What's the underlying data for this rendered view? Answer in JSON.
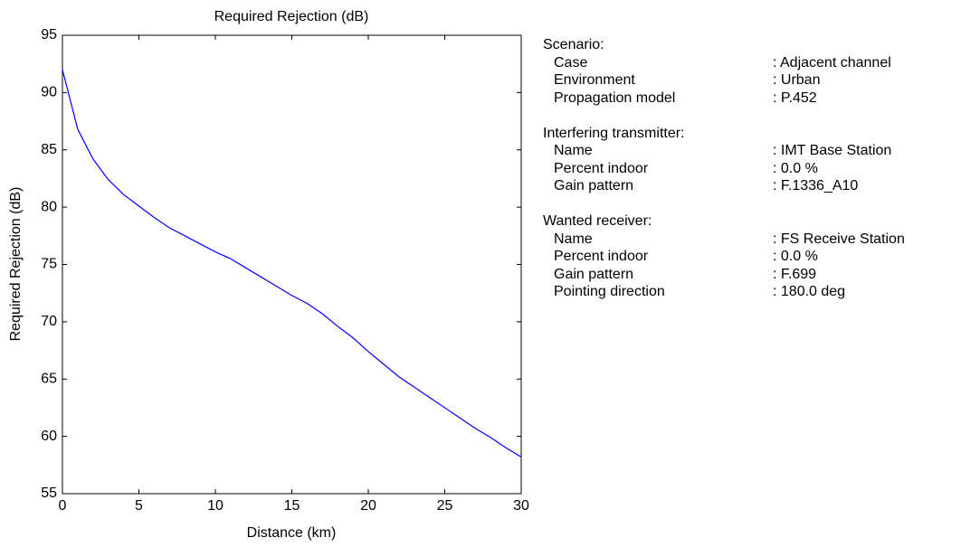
{
  "chart_data": {
    "type": "line",
    "title": "Required Rejection (dB)",
    "xlabel": "Distance (km)",
    "ylabel": "Required Rejection (dB)",
    "x": [
      0,
      1,
      2,
      3,
      4,
      5,
      6,
      7,
      8,
      9,
      10,
      11,
      12,
      13,
      14,
      15,
      16,
      17,
      18,
      19,
      20,
      21,
      22,
      23,
      24,
      25,
      26,
      27,
      28,
      29,
      30
    ],
    "values": [
      92,
      86.8,
      84.2,
      82.4,
      81.1,
      80.1,
      79.1,
      78.2,
      77.5,
      76.8,
      76.1,
      75.5,
      74.7,
      73.9,
      73.1,
      72.3,
      71.6,
      70.7,
      69.6,
      68.6,
      67.4,
      66.3,
      65.2,
      64.3,
      63.4,
      62.5,
      61.6,
      60.7,
      59.9,
      59.0,
      58.2
    ],
    "color": "#0000ff",
    "xlim": [
      0,
      30
    ],
    "ylim": [
      55,
      95
    ],
    "xticks": [
      0,
      5,
      10,
      15,
      20,
      25,
      30
    ],
    "yticks": [
      55,
      60,
      65,
      70,
      75,
      80,
      85,
      90,
      95
    ]
  },
  "info": [
    {
      "heading": "Scenario:",
      "rows": [
        [
          "Case",
          ": Adjacent channel"
        ],
        [
          "Environment",
          ": Urban"
        ],
        [
          "Propagation model",
          ": P.452"
        ]
      ]
    },
    {
      "heading": "Interfering transmitter:",
      "rows": [
        [
          "Name",
          ": IMT Base Station"
        ],
        [
          "Percent indoor",
          ": 0.0 %"
        ],
        [
          "Gain pattern",
          ": F.1336_A10"
        ]
      ]
    },
    {
      "heading": "Wanted receiver:",
      "rows": [
        [
          "Name",
          ": FS Receive Station"
        ],
        [
          "Percent indoor",
          ": 0.0 %"
        ],
        [
          "Gain pattern",
          ": F.699"
        ],
        [
          "Pointing direction",
          ": 180.0 deg"
        ]
      ]
    }
  ]
}
